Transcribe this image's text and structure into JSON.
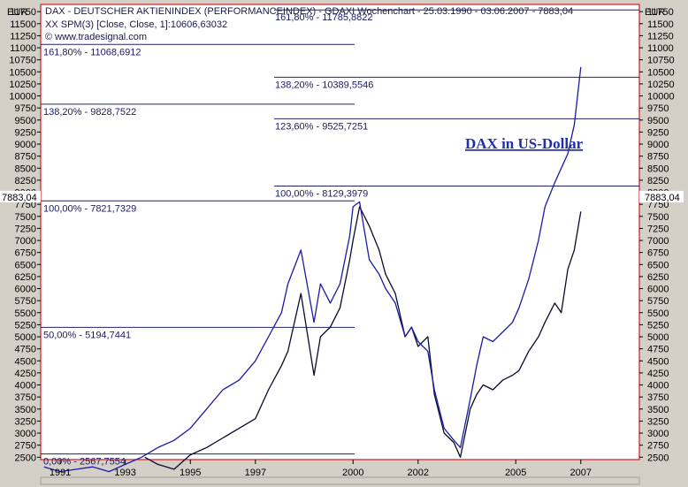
{
  "header": {
    "title": "DAX - DEUTSCHER AKTIENINDEX (PERFORMANCEINDEX) - GDAXI Wochenchart - 25.03.1990 - 03.06.2007 - 7883,04",
    "indicator": "XX SPM(3) [Close, Close, 1]:10606,63032",
    "watermark": "© www.tradesignal.com"
  },
  "currency_left": "EUR",
  "currency_right": "EUR",
  "current_value_label": "7883,04",
  "colors": {
    "background": "#ffffff",
    "frame": "#cc2020",
    "dax_eur": "#0a0a2e",
    "dax_usd": "#1a1aa8",
    "fib_line": "#22226a"
  },
  "chart_data": {
    "type": "line",
    "title": "DAX - DEUTSCHER AKTIENINDEX (PERFORMANCEINDEX) - GDAXI Wochenchart - 25.03.1990 - 03.06.2007 - 7883,04",
    "ylim": [
      2450,
      11900
    ],
    "xlim": [
      1990.4,
      2008.8
    ],
    "x_tick_labels": [
      "1991",
      "1993",
      "1995",
      "1997",
      "2000",
      "2002",
      "2005",
      "2007"
    ],
    "x_tick_values": [
      1991,
      1993,
      1995,
      1997,
      2000,
      2002,
      2005,
      2007
    ],
    "y_ticks": [
      2500,
      2750,
      3000,
      3250,
      3500,
      3750,
      4000,
      4250,
      4500,
      4750,
      5000,
      5250,
      5500,
      5750,
      6000,
      6250,
      6500,
      6750,
      7000,
      7250,
      7500,
      7750,
      8000,
      8250,
      8500,
      8750,
      9000,
      9250,
      9500,
      9750,
      10000,
      10250,
      10500,
      10750,
      11000,
      11250,
      11500,
      11750
    ],
    "series": [
      {
        "name": "",
        "color": "#0a0a2e",
        "x": [
          1993.6,
          1994.0,
          1994.5,
          1995.0,
          1995.5,
          1996.0,
          1996.5,
          1997.0,
          1997.4,
          1997.8,
          1998.0,
          1998.4,
          1998.8,
          1999.0,
          1999.3,
          1999.6,
          1999.9,
          2000.0,
          2000.2,
          2000.5,
          2000.8,
          2001.0,
          2001.3,
          2001.6,
          2001.8,
          2002.0,
          2002.3,
          2002.5,
          2002.8,
          2003.1,
          2003.3,
          2003.6,
          2003.8,
          2004.0,
          2004.3,
          2004.6,
          2004.9,
          2005.1,
          2005.4,
          2005.7,
          2005.9,
          2006.2,
          2006.4,
          2006.6,
          2006.8,
          2007.0
        ],
        "y": [
          2500,
          2350,
          2250,
          2550,
          2700,
          2900,
          3100,
          3300,
          3900,
          4400,
          4700,
          5900,
          4200,
          5000,
          5200,
          5600,
          6600,
          7000,
          7700,
          7300,
          6800,
          6300,
          5900,
          5000,
          5200,
          4800,
          5000,
          3800,
          3000,
          2800,
          2500,
          3500,
          3800,
          4000,
          3900,
          4100,
          4200,
          4300,
          4700,
          5000,
          5300,
          5700,
          5500,
          6400,
          6800,
          7600
        ]
      },
      {
        "name": "DAX in US-Dollar",
        "color": "#1a1aa8",
        "x": [
          1990.5,
          1991.0,
          1991.5,
          1992.0,
          1992.5,
          1993.0,
          1993.5,
          1994.0,
          1994.5,
          1995.0,
          1995.5,
          1996.0,
          1996.5,
          1997.0,
          1997.4,
          1997.8,
          1998.0,
          1998.4,
          1998.8,
          1999.0,
          1999.3,
          1999.6,
          1999.9,
          2000.0,
          2000.2,
          2000.5,
          2000.8,
          2001.0,
          2001.3,
          2001.6,
          2001.8,
          2002.0,
          2002.3,
          2002.5,
          2002.8,
          2003.1,
          2003.3,
          2003.6,
          2003.8,
          2004.0,
          2004.3,
          2004.6,
          2004.9,
          2005.1,
          2005.4,
          2005.7,
          2005.9,
          2006.2,
          2006.4,
          2006.6,
          2006.8,
          2007.0
        ],
        "y": [
          2300,
          2200,
          2250,
          2300,
          2200,
          2350,
          2500,
          2700,
          2850,
          3100,
          3500,
          3900,
          4100,
          4500,
          5000,
          5500,
          6100,
          6800,
          5300,
          6100,
          5700,
          6100,
          7100,
          7700,
          7800,
          6600,
          6300,
          6000,
          5700,
          5000,
          5200,
          4900,
          4700,
          3900,
          3100,
          2850,
          2700,
          3700,
          4400,
          5000,
          4900,
          5100,
          5300,
          5600,
          6200,
          7000,
          7700,
          8200,
          8500,
          8800,
          9400,
          10600
        ]
      }
    ],
    "fibonacci_left": [
      {
        "label": "161,80% - 11068,6912",
        "value": 11068.6912
      },
      {
        "label": "138,20% - 9828,7522",
        "value": 9828.7522
      },
      {
        "label": "100,00% - 7821,7329",
        "value": 7821.7329
      },
      {
        "label": "50,00% - 5194,7441",
        "value": 5194.7441
      },
      {
        "label": "0,00% - 2567,7554",
        "value": 2567.7554
      }
    ],
    "fibonacci_right": [
      {
        "label": "161,80% - 11785,8822",
        "value": 11785.8822
      },
      {
        "label": "138,20% - 10389,5546",
        "value": 10389.5546
      },
      {
        "label": "123,60% - 9525,7251",
        "value": 9525.7251
      },
      {
        "label": "100,00% - 8129,3979",
        "value": 8129.3979
      }
    ],
    "annotation": "DAX in US-Dollar",
    "legend": "none",
    "grid": false
  }
}
